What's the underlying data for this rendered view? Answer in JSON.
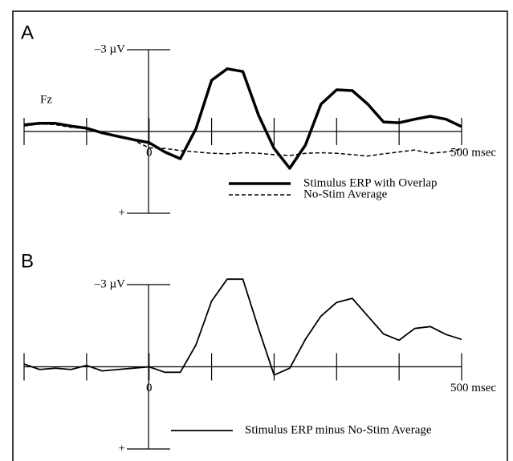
{
  "chart_data": [
    {
      "type": "line",
      "label": "A",
      "annotation": "Fz",
      "x": [
        -200,
        -175,
        -150,
        -125,
        -100,
        -75,
        -50,
        -25,
        0,
        25,
        50,
        75,
        100,
        125,
        150,
        175,
        200,
        225,
        250,
        275,
        300,
        325,
        350,
        375,
        400,
        425,
        450,
        475,
        500
      ],
      "series": [
        {
          "name": "Stimulus ERP with Overlap",
          "color": "#000000",
          "dashed": false,
          "width": 3.5,
          "values": [
            -0.24,
            -0.3,
            -0.3,
            -0.2,
            -0.12,
            0.05,
            0.18,
            0.3,
            0.41,
            0.75,
            1.0,
            -0.1,
            -1.88,
            -2.3,
            -2.2,
            -0.6,
            0.62,
            1.35,
            0.5,
            -1.0,
            -1.53,
            -1.5,
            -1.0,
            -0.35,
            -0.32,
            -0.45,
            -0.56,
            -0.45,
            -0.18
          ]
        },
        {
          "name": "No-Stim Average",
          "color": "#000000",
          "dashed": true,
          "width": 1.5,
          "values": [
            -0.2,
            -0.28,
            -0.25,
            -0.15,
            -0.1,
            0.05,
            0.2,
            0.32,
            0.6,
            0.62,
            0.7,
            0.75,
            0.8,
            0.82,
            0.78,
            0.8,
            0.85,
            0.88,
            0.8,
            0.78,
            0.8,
            0.85,
            0.9,
            0.82,
            0.75,
            0.68,
            0.8,
            0.75,
            0.65
          ]
        }
      ],
      "xlim": [
        -200,
        500
      ],
      "xticks": [
        {
          "value": -200,
          "label": null
        },
        {
          "value": -100,
          "label": null
        },
        0,
        {
          "value": 100,
          "label": null
        },
        {
          "value": 200,
          "label": null
        },
        {
          "value": 300,
          "label": null
        },
        {
          "value": 400,
          "label": null
        },
        {
          "value": 500,
          "label": "500 msec"
        }
      ],
      "ylim": [
        3,
        -3
      ],
      "yticks": [
        {
          "value": -3,
          "label": "–3 µV"
        },
        {
          "value": 3,
          "label": "+"
        }
      ]
    },
    {
      "type": "line",
      "label": "B",
      "x": [
        -200,
        -175,
        -150,
        -125,
        -100,
        -75,
        -50,
        -25,
        0,
        25,
        50,
        75,
        100,
        125,
        150,
        175,
        200,
        225,
        250,
        275,
        300,
        325,
        350,
        375,
        400,
        425,
        450,
        475,
        500
      ],
      "series": [
        {
          "name": "Stimulus ERP minus No-Stim Average",
          "color": "#000000",
          "dashed": false,
          "width": 1.8,
          "values": [
            -0.1,
            0.1,
            0.05,
            0.1,
            -0.05,
            0.15,
            0.1,
            0.05,
            0.0,
            0.2,
            0.2,
            -0.8,
            -2.4,
            -3.2,
            -3.2,
            -1.4,
            0.3,
            0.05,
            -1.0,
            -1.85,
            -2.35,
            -2.5,
            -1.85,
            -1.2,
            -0.97,
            -1.4,
            -1.47,
            -1.18,
            -1.0
          ]
        }
      ],
      "xlim": [
        -200,
        500
      ],
      "xticks": [
        {
          "value": -200,
          "label": null
        },
        {
          "value": -100,
          "label": null
        },
        0,
        {
          "value": 100,
          "label": null
        },
        {
          "value": 200,
          "label": null
        },
        {
          "value": 300,
          "label": null
        },
        {
          "value": 400,
          "label": null
        },
        {
          "value": 500,
          "label": "500 msec"
        }
      ],
      "ylim": [
        3,
        -3
      ],
      "yticks": [
        {
          "value": -3,
          "label": "–3 µV"
        },
        {
          "value": 3,
          "label": "+"
        }
      ]
    }
  ]
}
